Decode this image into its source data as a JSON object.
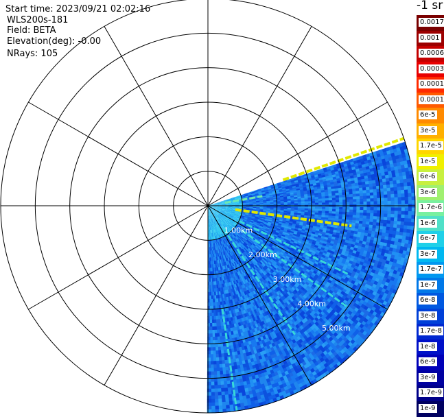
{
  "info": {
    "start_time": "Start time: 2023/09/21 02:02:16",
    "instrument": "WLS200s-181",
    "field": "Field: BETA",
    "elevation": "Elevation(deg): -0.00",
    "nrays": "NRays: 105"
  },
  "colorbar": {
    "title": "-1 sr",
    "ticks": [
      "0.0017",
      "0.001",
      "0.0006",
      "0.0003",
      "0.00017",
      "0.0001",
      "6e-5",
      "3e-5",
      "1.7e-5",
      "1e-5",
      "6e-6",
      "3e-6",
      "1.7e-6",
      "1e-6",
      "6e-7",
      "3e-7",
      "1.7e-7",
      "1e-7",
      "6e-8",
      "3e-8",
      "1.7e-8",
      "1e-8",
      "6e-9",
      "3e-9",
      "1.7e-9",
      "1e-9"
    ],
    "colors": [
      "#7a0000",
      "#9c0000",
      "#c40000",
      "#e80000",
      "#ff2a00",
      "#ff5a00",
      "#ff8a00",
      "#ffb000",
      "#ffd600",
      "#f0f000",
      "#c8f040",
      "#a0f070",
      "#78f0a0",
      "#50e0c8",
      "#20d0e8",
      "#00b8f0",
      "#0098f0",
      "#0078e8",
      "#0058e0",
      "#0040d8",
      "#0028d0",
      "#0010c8",
      "#0000b8",
      "#0000a0",
      "#000088",
      "#000060"
    ]
  },
  "chart_data": {
    "type": "heatmap",
    "projection": "polar PPI scan",
    "field": "BETA",
    "units": "sr-1 (log color scale, 1e-9 to 0.0017)",
    "ring_labels": [
      "1.00km",
      "2.00km",
      "3.00km",
      "4.00km",
      "5.00km"
    ],
    "ring_values_km": [
      1,
      2,
      3,
      4,
      5
    ],
    "max_range_km": 6,
    "sector_azimuth_deg": [
      72,
      180
    ],
    "nrays": 105,
    "background_level": "3e-9 to 3e-8",
    "features": [
      {
        "name": "streak",
        "azimuth_deg": 71,
        "range_km": [
          2.3,
          6.0
        ],
        "level": "1.7e-6 to 1e-5"
      },
      {
        "name": "streak",
        "azimuth_deg": 80,
        "range_km": [
          0.5,
          1.6
        ],
        "level": "1.7e-6"
      },
      {
        "name": "streak",
        "azimuth_deg": 98,
        "range_km": [
          0.8,
          4.2
        ],
        "level": "3e-6 to 1e-5"
      },
      {
        "name": "streak",
        "azimuth_deg": 116,
        "range_km": [
          1.0,
          4.5
        ],
        "level": "1e-7 to 1.7e-6"
      },
      {
        "name": "streak",
        "azimuth_deg": 126,
        "range_km": [
          1.2,
          5.0
        ],
        "level": "1e-7 to 1e-6"
      },
      {
        "name": "streak",
        "azimuth_deg": 146,
        "range_km": [
          0.8,
          4.5
        ],
        "level": "1e-7 to 1e-6"
      },
      {
        "name": "streak",
        "azimuth_deg": 172,
        "range_km": [
          3.0,
          6.0
        ],
        "level": "6e-8 to 1e-6"
      }
    ]
  }
}
